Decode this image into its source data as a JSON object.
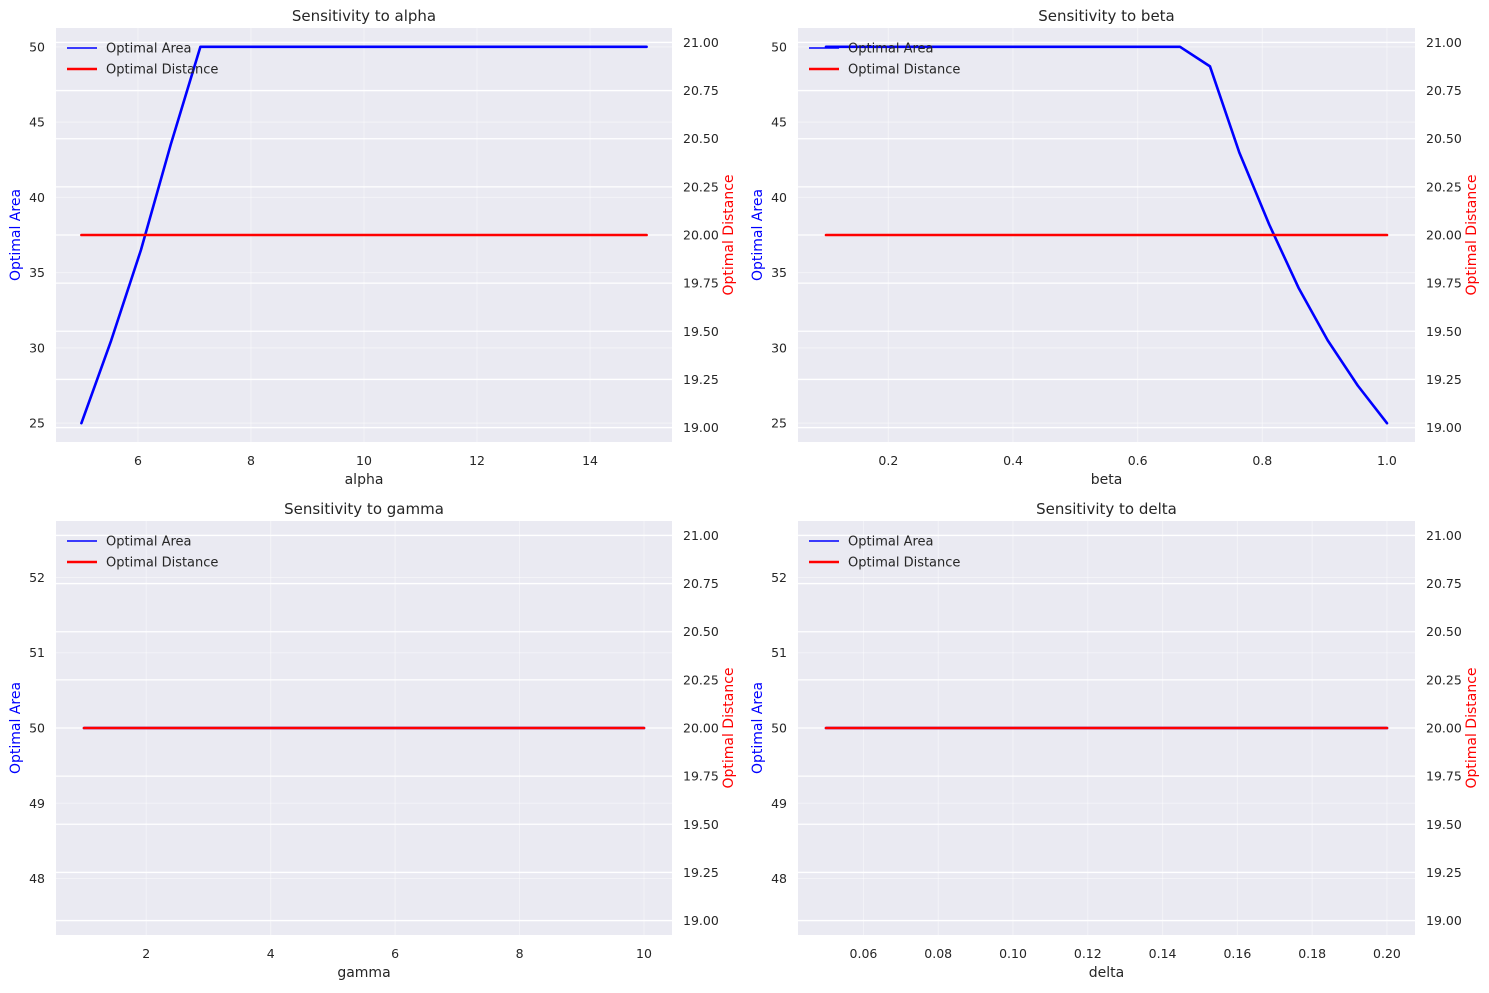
{
  "chart_data": [
    {
      "type": "line",
      "title": "Sensitivity to alpha",
      "xlabel": "alpha",
      "ylabel_left": "Optimal Area",
      "ylabel_right": "Optimal Distance",
      "xlim": [
        4.55,
        15.45
      ],
      "ylim_left": [
        23.75,
        51.25
      ],
      "ylim_right": [
        18.925,
        21.075
      ],
      "xticks": [
        6,
        8,
        10,
        12,
        14
      ],
      "xtick_labels": [
        "6",
        "8",
        "10",
        "12",
        "14"
      ],
      "yticks_left": [
        25,
        30,
        35,
        40,
        45,
        50
      ],
      "ytick_labels_left": [
        "25",
        "30",
        "35",
        "40",
        "45",
        "50"
      ],
      "yticks_right": [
        19.0,
        19.25,
        19.5,
        19.75,
        20.0,
        20.25,
        20.5,
        20.75,
        21.0
      ],
      "ytick_labels_right": [
        "19.00",
        "19.25",
        "19.50",
        "19.75",
        "20.00",
        "20.25",
        "20.50",
        "20.75",
        "21.00"
      ],
      "legend": "upper left",
      "grid": true,
      "series": [
        {
          "name": "Optimal Area",
          "axis": "left",
          "color": "#0000ff",
          "x": [
            5,
            5.526,
            6.053,
            6.579,
            7.105,
            7.632,
            8.158,
            8.684,
            9.211,
            9.737,
            10.263,
            10.789,
            11.316,
            11.842,
            12.368,
            12.895,
            13.421,
            13.947,
            14.474,
            15
          ],
          "y": [
            25,
            30.5,
            36.5,
            43.5,
            50,
            50,
            50,
            50,
            50,
            50,
            50,
            50,
            50,
            50,
            50,
            50,
            50,
            50,
            50,
            50
          ]
        },
        {
          "name": "Optimal Distance",
          "axis": "right",
          "color": "#ff0000",
          "x": [
            5,
            15
          ],
          "y": [
            20,
            20
          ]
        }
      ]
    },
    {
      "type": "line",
      "title": "Sensitivity to beta",
      "xlabel": "beta",
      "ylabel_left": "Optimal Area",
      "ylabel_right": "Optimal Distance",
      "xlim": [
        0.055,
        1.045
      ],
      "ylim_left": [
        23.75,
        51.25
      ],
      "ylim_right": [
        18.925,
        21.075
      ],
      "xticks": [
        0.2,
        0.4,
        0.6,
        0.8,
        1.0
      ],
      "xtick_labels": [
        "0.2",
        "0.4",
        "0.6",
        "0.8",
        "1.0"
      ],
      "yticks_left": [
        25,
        30,
        35,
        40,
        45,
        50
      ],
      "ytick_labels_left": [
        "25",
        "30",
        "35",
        "40",
        "45",
        "50"
      ],
      "yticks_right": [
        19.0,
        19.25,
        19.5,
        19.75,
        20.0,
        20.25,
        20.5,
        20.75,
        21.0
      ],
      "ytick_labels_right": [
        "19.00",
        "19.25",
        "19.50",
        "19.75",
        "20.00",
        "20.25",
        "20.50",
        "20.75",
        "21.00"
      ],
      "legend": "upper left",
      "grid": true,
      "series": [
        {
          "name": "Optimal Area",
          "axis": "left",
          "color": "#0000ff",
          "x": [
            0.1,
            0.147,
            0.195,
            0.242,
            0.289,
            0.337,
            0.384,
            0.432,
            0.479,
            0.526,
            0.574,
            0.621,
            0.668,
            0.716,
            0.763,
            0.811,
            0.858,
            0.905,
            0.953,
            1.0
          ],
          "y": [
            50,
            50,
            50,
            50,
            50,
            50,
            50,
            50,
            50,
            50,
            50,
            50,
            50,
            48.7,
            43,
            38.2,
            34,
            30.5,
            27.5,
            25
          ]
        },
        {
          "name": "Optimal Distance",
          "axis": "right",
          "color": "#ff0000",
          "x": [
            0.1,
            1.0
          ],
          "y": [
            20,
            20
          ]
        }
      ]
    },
    {
      "type": "line",
      "title": "Sensitivity to gamma",
      "xlabel": "gamma",
      "ylabel_left": "Optimal Area",
      "ylabel_right": "Optimal Distance",
      "xlim": [
        0.55,
        10.45
      ],
      "ylim_left": [
        47.25,
        52.75
      ],
      "ylim_right": [
        18.925,
        21.075
      ],
      "xticks": [
        2,
        4,
        6,
        8,
        10
      ],
      "xtick_labels": [
        "2",
        "4",
        "6",
        "8",
        "10"
      ],
      "yticks_left": [
        48,
        49,
        50,
        51,
        52
      ],
      "ytick_labels_left": [
        "48",
        "49",
        "50",
        "51",
        "52"
      ],
      "yticks_right": [
        19.0,
        19.25,
        19.5,
        19.75,
        20.0,
        20.25,
        20.5,
        20.75,
        21.0
      ],
      "ytick_labels_right": [
        "19.00",
        "19.25",
        "19.50",
        "19.75",
        "20.00",
        "20.25",
        "20.50",
        "20.75",
        "21.00"
      ],
      "legend": "upper left",
      "grid": true,
      "series": [
        {
          "name": "Optimal Area",
          "axis": "left",
          "color": "#0000ff",
          "x": [
            1,
            10
          ],
          "y": [
            50,
            50
          ]
        },
        {
          "name": "Optimal Distance",
          "axis": "right",
          "color": "#ff0000",
          "x": [
            1,
            10
          ],
          "y": [
            20,
            20
          ]
        }
      ]
    },
    {
      "type": "line",
      "title": "Sensitivity to delta",
      "xlabel": "delta",
      "ylabel_left": "Optimal Area",
      "ylabel_right": "Optimal Distance",
      "xlim": [
        0.0425,
        0.2075
      ],
      "ylim_left": [
        47.25,
        52.75
      ],
      "ylim_right": [
        18.925,
        21.075
      ],
      "xticks": [
        0.06,
        0.08,
        0.1,
        0.12,
        0.14,
        0.16,
        0.18,
        0.2
      ],
      "xtick_labels": [
        "0.06",
        "0.08",
        "0.10",
        "0.12",
        "0.14",
        "0.16",
        "0.18",
        "0.20"
      ],
      "yticks_left": [
        48,
        49,
        50,
        51,
        52
      ],
      "ytick_labels_left": [
        "48",
        "49",
        "50",
        "51",
        "52"
      ],
      "yticks_right": [
        19.0,
        19.25,
        19.5,
        19.75,
        20.0,
        20.25,
        20.5,
        20.75,
        21.0
      ],
      "ytick_labels_right": [
        "19.00",
        "19.25",
        "19.50",
        "19.75",
        "20.00",
        "20.25",
        "20.50",
        "20.75",
        "21.00"
      ],
      "legend": "upper left",
      "grid": true,
      "series": [
        {
          "name": "Optimal Area",
          "axis": "left",
          "color": "#0000ff",
          "x": [
            0.05,
            0.2
          ],
          "y": [
            50,
            50
          ]
        },
        {
          "name": "Optimal Distance",
          "axis": "right",
          "color": "#ff0000",
          "x": [
            0.05,
            0.2
          ],
          "y": [
            20,
            20
          ]
        }
      ]
    }
  ],
  "colors": {
    "axes_background": "#eaeaf2",
    "grid": "#ffffff",
    "text": "#262626",
    "left_axis_label": "#0000ff",
    "right_axis_label": "#ff0000"
  }
}
